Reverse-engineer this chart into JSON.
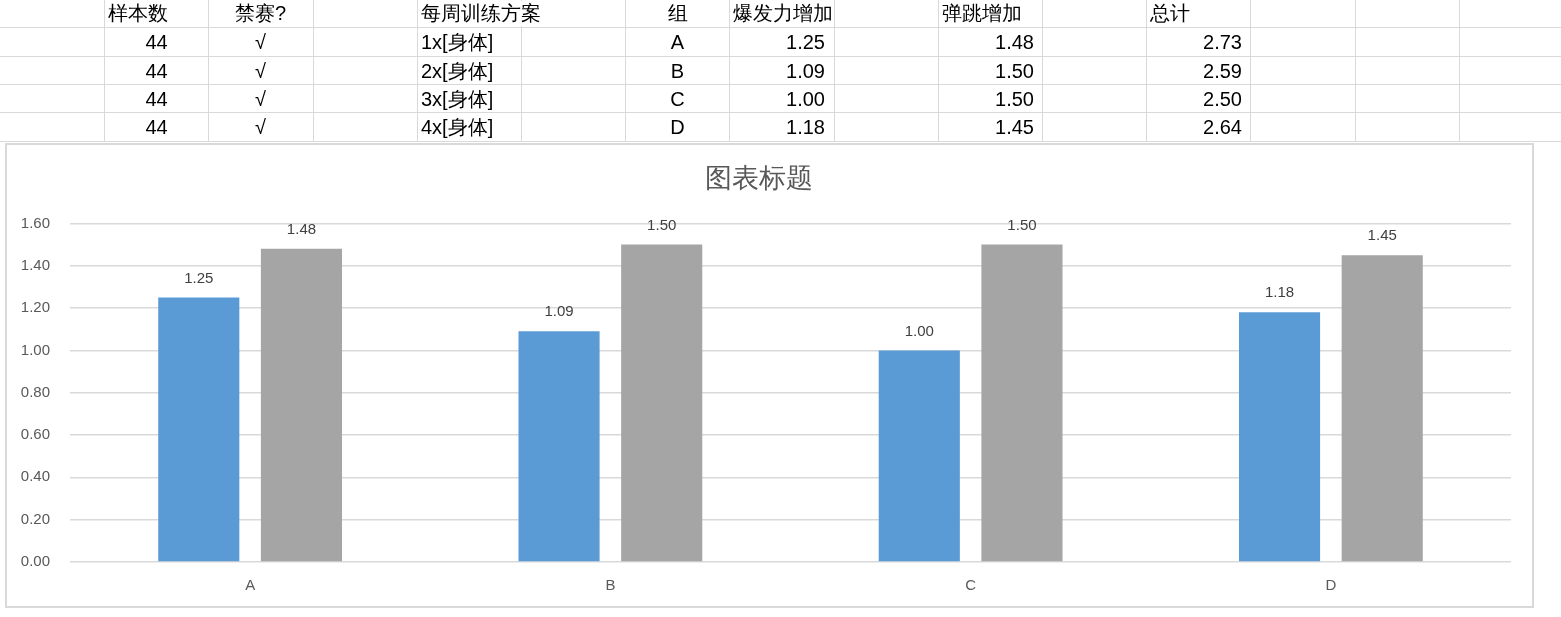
{
  "chart_data": {
    "type": "bar",
    "title": "图表标题",
    "categories": [
      "A",
      "B",
      "C",
      "D"
    ],
    "series": [
      {
        "color": "#5b9bd5",
        "values": [
          1.25,
          1.09,
          1.0,
          1.18
        ],
        "value_labels": [
          "1.25",
          "1.09",
          "1.00",
          "1.18"
        ]
      },
      {
        "color": "#a5a5a5",
        "values": [
          1.48,
          1.5,
          1.5,
          1.45
        ],
        "value_labels": [
          "1.48",
          "1.50",
          "1.50",
          "1.45"
        ]
      }
    ],
    "ylim": [
      0,
      1.6
    ],
    "yticks": [
      {
        "value": 0,
        "label": "0.00"
      },
      {
        "value": 0.2,
        "label": "0.20"
      },
      {
        "value": 0.4,
        "label": "0.40"
      },
      {
        "value": 0.6,
        "label": "0.60"
      },
      {
        "value": 0.8,
        "label": "0.80"
      },
      {
        "value": 1,
        "label": "1.00"
      },
      {
        "value": 1.2,
        "label": "1.20"
      },
      {
        "value": 1.4,
        "label": "1.40"
      },
      {
        "value": 1.6,
        "label": "1.60"
      }
    ],
    "grid": "y",
    "annotations": [
      "样本数",
      "禁赛?",
      "每周训练方案",
      "组",
      "爆发力增加",
      "弹跳增加",
      "总计",
      "44",
      "√",
      "1x[身体]",
      "A",
      "1.25",
      "1.48",
      "2.73",
      "44",
      "√",
      "2x[身体]",
      "B",
      "1.09",
      "1.50",
      "2.59",
      "44",
      "√",
      "3x[身体]",
      "C",
      "1.00",
      "1.50",
      "2.50",
      "44",
      "√",
      "4x[身体]",
      "D",
      "1.18",
      "1.45",
      "2.64"
    ]
  }
}
